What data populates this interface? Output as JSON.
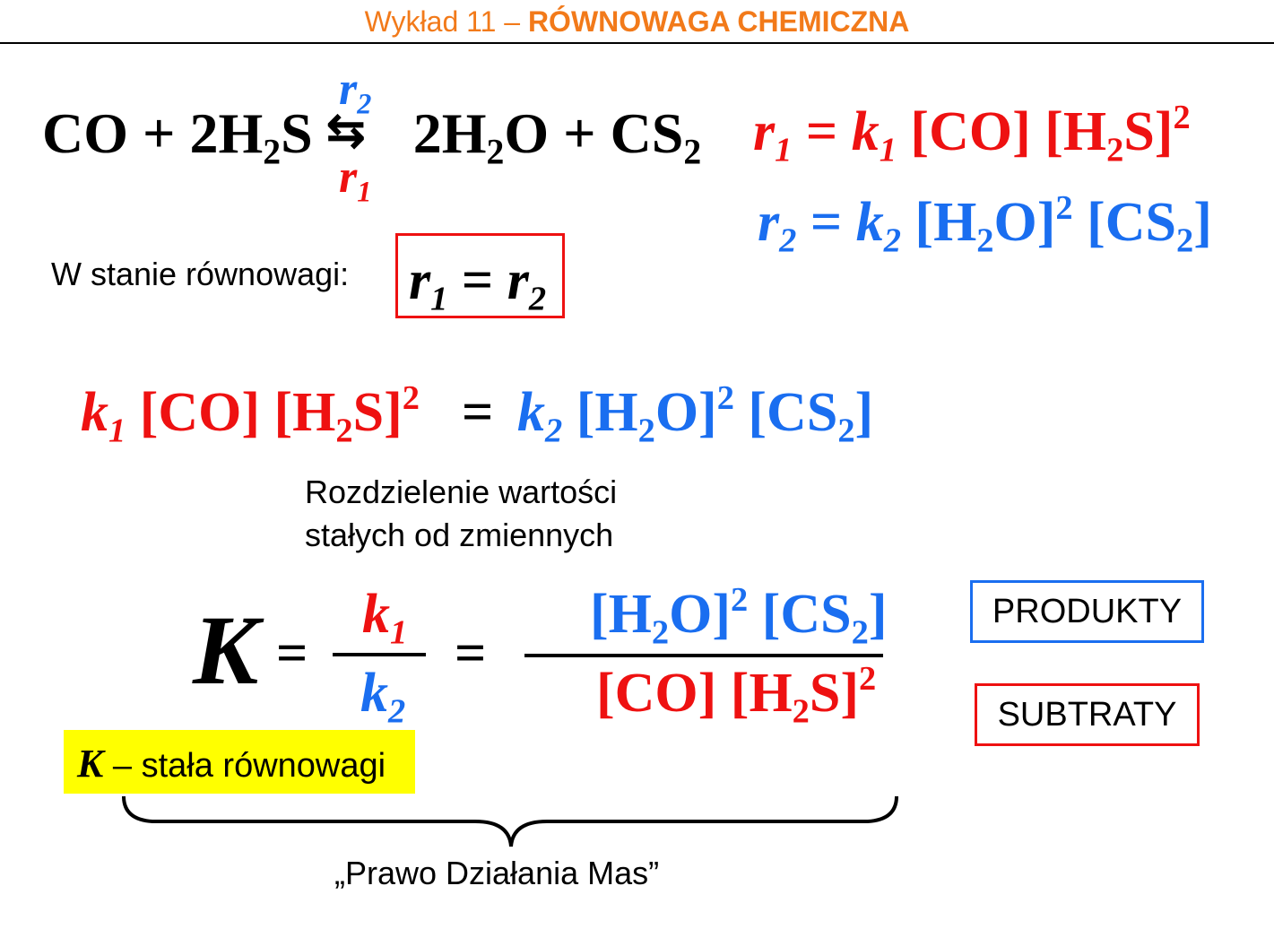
{
  "header": {
    "prefix": "Wykład 11 – ",
    "title": "RÓWNOWAGA CHEMICZNA"
  },
  "colors": {
    "header": "#f27a1a",
    "forward": "#ee1111",
    "reverse": "#1a6ef0",
    "highlight": "#ffff00"
  },
  "reaction": {
    "reactants": "CO + 2H",
    "reactants_sub": "2",
    "reactants_end": "S",
    "arrow": "⇆",
    "products": "2H",
    "products_sub": "2",
    "products_mid": "O + CS",
    "products_end_sub": "2",
    "rate_forward_letter": "r",
    "rate_forward_sub": "1",
    "rate_reverse_letter": "r",
    "rate_reverse_sub": "2"
  },
  "rate_law_1": {
    "r": "r",
    "r_sub": "1",
    "eq": " = ",
    "k": "k",
    "k_sub": "1",
    "conc_a": " [CO] [H",
    "conc_a_sub": "2",
    "conc_a_end": "S]",
    "exp": "2"
  },
  "rate_law_2": {
    "r": "r",
    "r_sub": "2",
    "eq": " = ",
    "k": "k",
    "k_sub": "2",
    "conc_a": " [H",
    "conc_a_sub": "2",
    "conc_a_end": "O]",
    "exp": "2",
    "conc_b": " [CS",
    "conc_b_sub": "2",
    "conc_b_end": "]"
  },
  "equilibrium": {
    "label": "W stanie równowagi:",
    "r1": "r",
    "r1_sub": "1",
    "eq": " = ",
    "r2": "r",
    "r2_sub": "2"
  },
  "balance": {
    "left_k": "k",
    "left_k_sub": "1",
    "left_conc": " [CO] [H",
    "left_sub": "2",
    "left_end": "S]",
    "left_exp": "2",
    "eq": "=",
    "right_k": "k",
    "right_k_sub": "2",
    "right_conc": " [H",
    "right_sub": "2",
    "right_mid": "O]",
    "right_exp": "2",
    "right_conc_b": " [CS",
    "right_b_sub": "2",
    "right_end": "]"
  },
  "note": {
    "line1": "Rozdzielenie wartości",
    "line2": "stałych od zmiennych"
  },
  "constant": {
    "K": "K",
    "eq1": "=",
    "num_k": "k",
    "num_k_sub": "1",
    "den_k": "k",
    "den_k_sub": "2",
    "eq2": "=",
    "num_conc": "[H",
    "num_sub": "2",
    "num_mid": "O]",
    "num_exp": "2",
    "num_conc_b": " [CS",
    "num_b_sub": "2",
    "num_end": "]",
    "den_conc": "[CO] [H",
    "den_sub": "2",
    "den_end": "S]",
    "den_exp": "2"
  },
  "legend": {
    "products": "PRODUKTY",
    "reactants": "SUBTRATY"
  },
  "definition": {
    "K": "K",
    "text": " – stała równowagi"
  },
  "law_name": "„Prawo Działania Mas”"
}
